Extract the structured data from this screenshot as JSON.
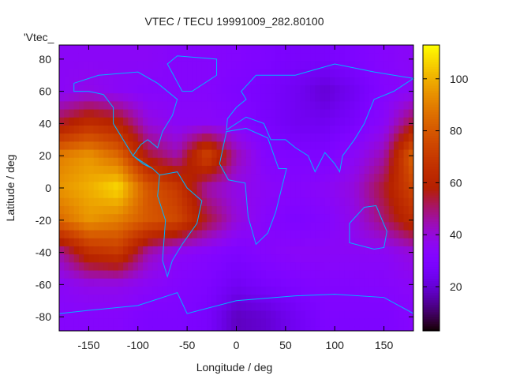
{
  "chart_data": {
    "type": "heatmap",
    "title": "VTEC / TECU 19991009_282.80100",
    "xlabel": "Longitude / deg",
    "ylabel": "Latitude / deg",
    "legend_label": "'Vtec_",
    "legend_placement": "top-left",
    "xlim": [
      -180,
      180
    ],
    "ylim": [
      -88.75,
      88.75
    ],
    "xticks": [
      -150,
      -100,
      -50,
      0,
      50,
      100,
      150
    ],
    "yticks": [
      -80,
      -60,
      -40,
      -20,
      0,
      20,
      40,
      60,
      80
    ],
    "colorbar": {
      "range": [
        3,
        113
      ],
      "ticks": [
        20,
        40,
        60,
        80,
        100
      ],
      "colormap": "gnuplot rgbformulae 7,5,15"
    },
    "coastline_color": "#00b4ff",
    "grid_lon": [
      -180,
      -150,
      -120,
      -90,
      -60,
      -30,
      0,
      30,
      60,
      90,
      120,
      150,
      180
    ],
    "grid_lat": [
      80,
      60,
      40,
      20,
      0,
      -20,
      -40,
      -60,
      -80
    ],
    "values": [
      [
        35,
        35,
        35,
        35,
        33,
        33,
        32,
        30,
        28,
        28,
        30,
        33,
        35
      ],
      [
        35,
        38,
        35,
        33,
        33,
        33,
        30,
        28,
        25,
        20,
        25,
        32,
        35
      ],
      [
        55,
        65,
        60,
        40,
        35,
        35,
        33,
        28,
        25,
        25,
        28,
        35,
        55
      ],
      [
        90,
        95,
        85,
        55,
        45,
        75,
        45,
        32,
        30,
        30,
        35,
        45,
        85
      ],
      [
        95,
        100,
        108,
        80,
        70,
        45,
        38,
        35,
        33,
        35,
        40,
        55,
        75
      ],
      [
        85,
        95,
        90,
        80,
        75,
        55,
        40,
        33,
        30,
        32,
        38,
        50,
        65
      ],
      [
        45,
        65,
        70,
        45,
        35,
        33,
        30,
        33,
        35,
        35,
        35,
        35,
        40
      ],
      [
        35,
        38,
        38,
        35,
        32,
        30,
        25,
        28,
        30,
        32,
        32,
        33,
        35
      ],
      [
        33,
        33,
        33,
        30,
        30,
        28,
        18,
        20,
        25,
        30,
        30,
        30,
        33
      ]
    ]
  }
}
